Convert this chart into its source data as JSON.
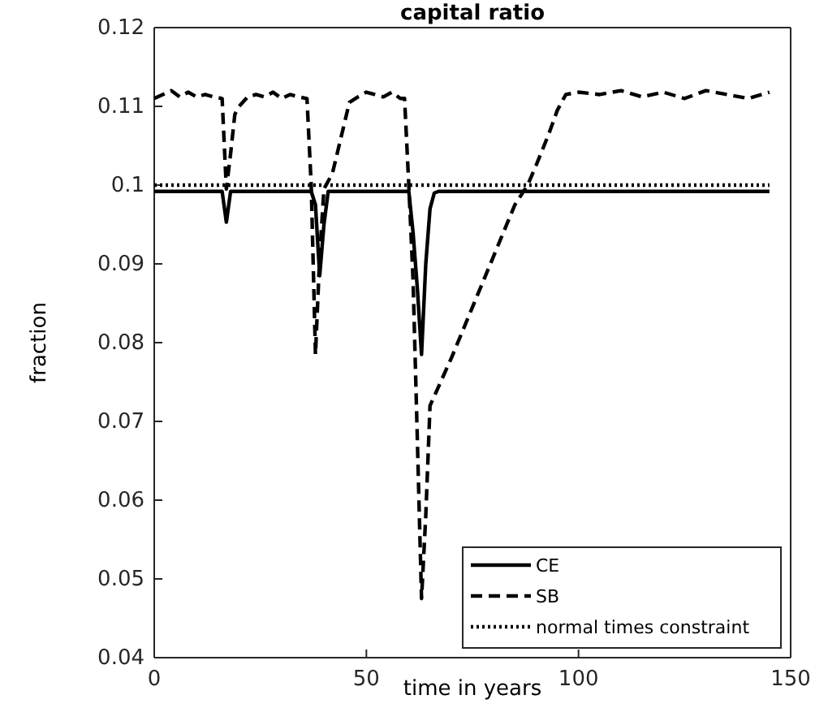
{
  "chart_data": {
    "type": "line",
    "title": "capital ratio",
    "xlabel": "time in years",
    "ylabel": "fraction",
    "xlim": [
      0,
      150
    ],
    "ylim": [
      0.04,
      0.12
    ],
    "xticks": [
      0,
      50,
      100,
      150
    ],
    "yticks": [
      0.04,
      0.05,
      0.06,
      0.07,
      0.08,
      0.09,
      {
        "value": 0.1,
        "label": "0.1"
      },
      0.11,
      0.12
    ],
    "legend": "bottom right",
    "grid": false,
    "series": [
      {
        "name": "CE",
        "color": "#000000",
        "line_style": "solid",
        "x": [
          0,
          16,
          17,
          18,
          37,
          38,
          39,
          40,
          41,
          59,
          60,
          61,
          62,
          63,
          64,
          65,
          66,
          67,
          145
        ],
        "values": [
          0.0992,
          0.0992,
          0.0953,
          0.0992,
          0.0992,
          0.0975,
          0.0885,
          0.095,
          0.0992,
          0.0992,
          0.0992,
          0.094,
          0.087,
          0.0785,
          0.09,
          0.097,
          0.099,
          0.0992,
          0.0992
        ]
      },
      {
        "name": "SB",
        "color": "#000000",
        "line_style": "dashed",
        "x": [
          0,
          2,
          4,
          6,
          8,
          10,
          12,
          14,
          16,
          17,
          18,
          19,
          20,
          22,
          24,
          26,
          28,
          30,
          32,
          34,
          36,
          37,
          38,
          39,
          40,
          42,
          44,
          46,
          48,
          50,
          52,
          54,
          56,
          58,
          59,
          60,
          61,
          62,
          63,
          64,
          65,
          70,
          75,
          80,
          85,
          88,
          90,
          93,
          95,
          97,
          100,
          105,
          110,
          115,
          120,
          125,
          130,
          135,
          140,
          145
        ],
        "values": [
          0.111,
          0.1115,
          0.112,
          0.1112,
          0.1118,
          0.1112,
          0.1115,
          0.1112,
          0.111,
          0.0995,
          0.104,
          0.109,
          0.11,
          0.1112,
          0.1115,
          0.1112,
          0.1118,
          0.111,
          0.1115,
          0.1112,
          0.111,
          0.1,
          0.0785,
          0.091,
          0.0995,
          0.1015,
          0.106,
          0.1105,
          0.1112,
          0.1118,
          0.1115,
          0.1112,
          0.1118,
          0.111,
          0.111,
          0.1,
          0.088,
          0.068,
          0.0475,
          0.058,
          0.072,
          0.078,
          0.0845,
          0.091,
          0.0975,
          0.1,
          0.1025,
          0.1065,
          0.1095,
          0.1115,
          0.1118,
          0.1115,
          0.112,
          0.1112,
          0.1118,
          0.111,
          0.112,
          0.1115,
          0.111,
          0.1118
        ]
      },
      {
        "name": "normal times constraint",
        "color": "#000000",
        "line_style": "dotted",
        "x": [
          0,
          145
        ],
        "values": [
          0.1,
          0.1
        ]
      }
    ]
  }
}
